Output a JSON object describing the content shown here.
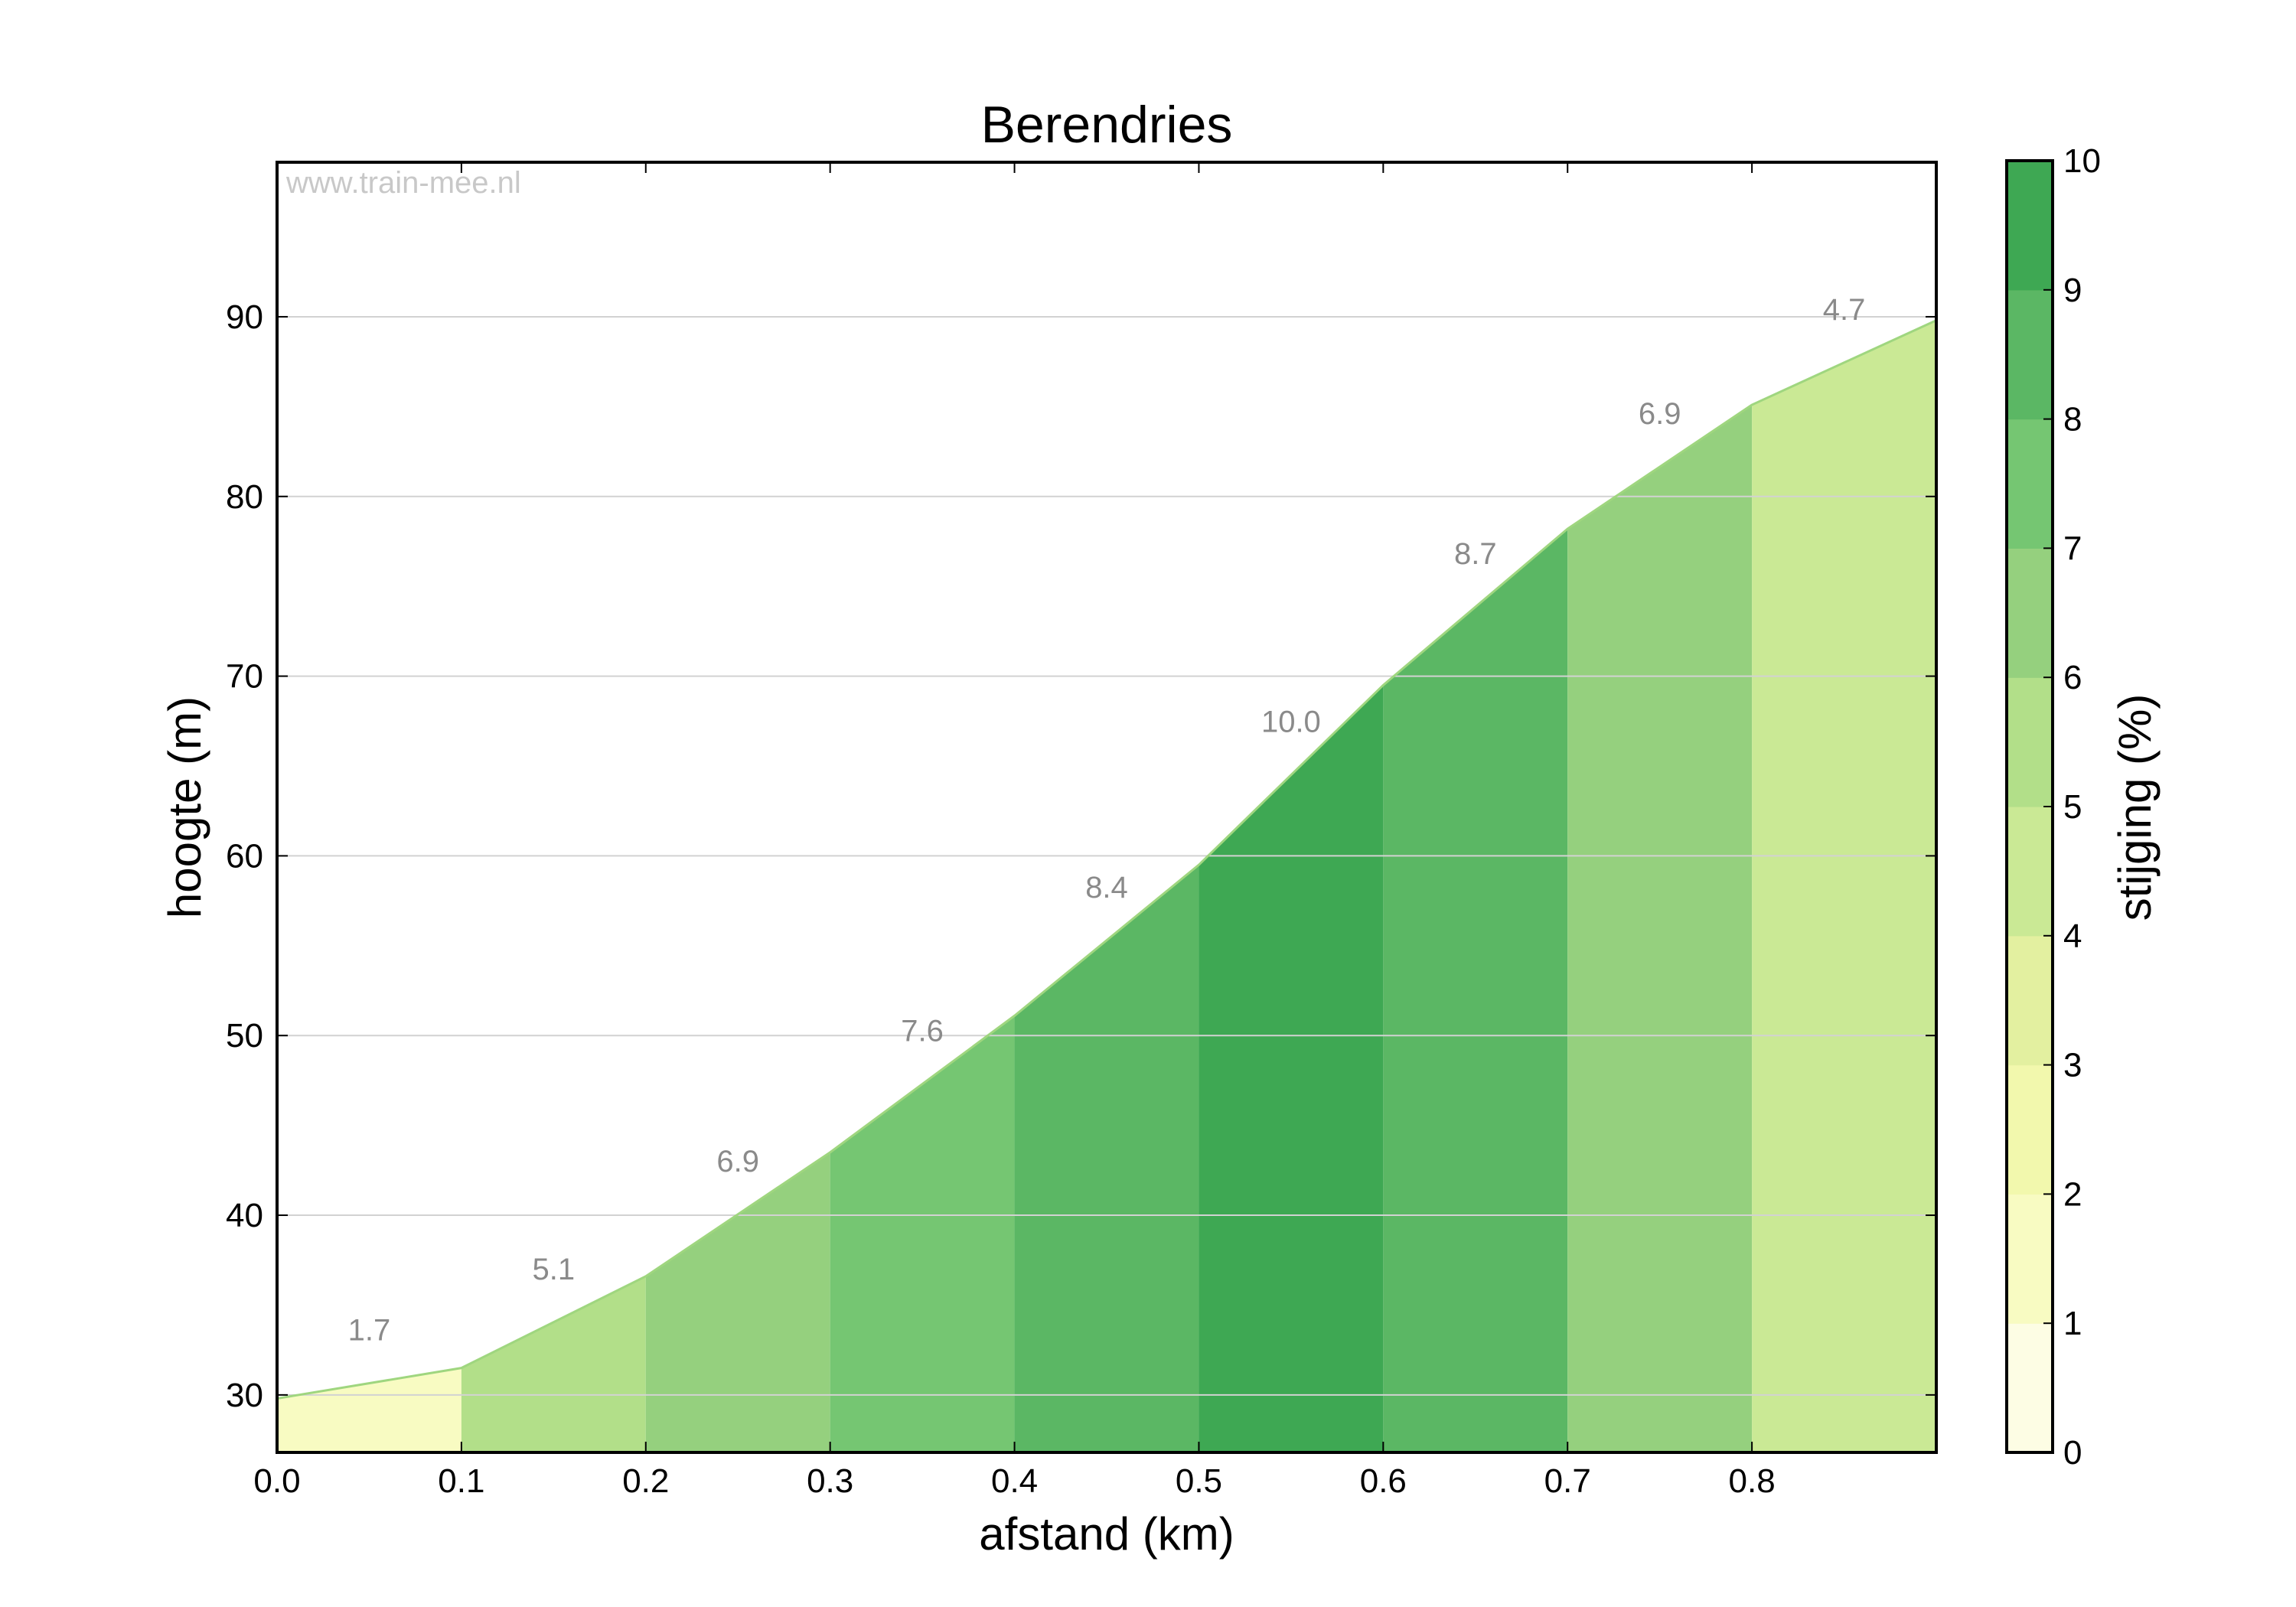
{
  "chart_data": {
    "type": "area",
    "title": "Berendries",
    "xlabel": "afstand (km)",
    "ylabel": "hoogte (m)",
    "xlim": [
      0.0,
      0.9
    ],
    "ylim": [
      26.8,
      98.6
    ],
    "xticks": [
      "0.0",
      "0.1",
      "0.2",
      "0.3",
      "0.4",
      "0.5",
      "0.6",
      "0.7",
      "0.8"
    ],
    "yticks": [
      "30",
      "40",
      "50",
      "60",
      "70",
      "80",
      "90"
    ],
    "grid": "horizontal",
    "watermark": "www.train-mee.nl",
    "x": [
      0.0,
      0.1,
      0.2,
      0.3,
      0.4,
      0.5,
      0.6,
      0.7,
      0.8,
      0.9
    ],
    "y": [
      29.8,
      31.5,
      36.6,
      43.5,
      51.1,
      59.5,
      69.5,
      78.2,
      85.1,
      89.8
    ],
    "segments": [
      {
        "x0": 0.0,
        "x1": 0.1,
        "grade": "1.7"
      },
      {
        "x0": 0.1,
        "x1": 0.2,
        "grade": "5.1"
      },
      {
        "x0": 0.2,
        "x1": 0.3,
        "grade": "6.9"
      },
      {
        "x0": 0.3,
        "x1": 0.4,
        "grade": "7.6"
      },
      {
        "x0": 0.4,
        "x1": 0.5,
        "grade": "8.4"
      },
      {
        "x0": 0.5,
        "x1": 0.6,
        "grade": "10.0"
      },
      {
        "x0": 0.6,
        "x1": 0.7,
        "grade": "8.7"
      },
      {
        "x0": 0.7,
        "x1": 0.8,
        "grade": "6.9"
      },
      {
        "x0": 0.8,
        "x1": 0.9,
        "grade": "4.7"
      }
    ],
    "colorbar": {
      "label": "stijging (%)",
      "ticks": [
        "0",
        "1",
        "2",
        "3",
        "4",
        "5",
        "6",
        "7",
        "8",
        "9",
        "10"
      ],
      "colors": [
        "#fdfde4",
        "#f8fbc2",
        "#f2f8ad",
        "#e3f0a0",
        "#cae995",
        "#b2df89",
        "#95d07e",
        "#75c672",
        "#5bb764",
        "#3ea853"
      ]
    }
  }
}
